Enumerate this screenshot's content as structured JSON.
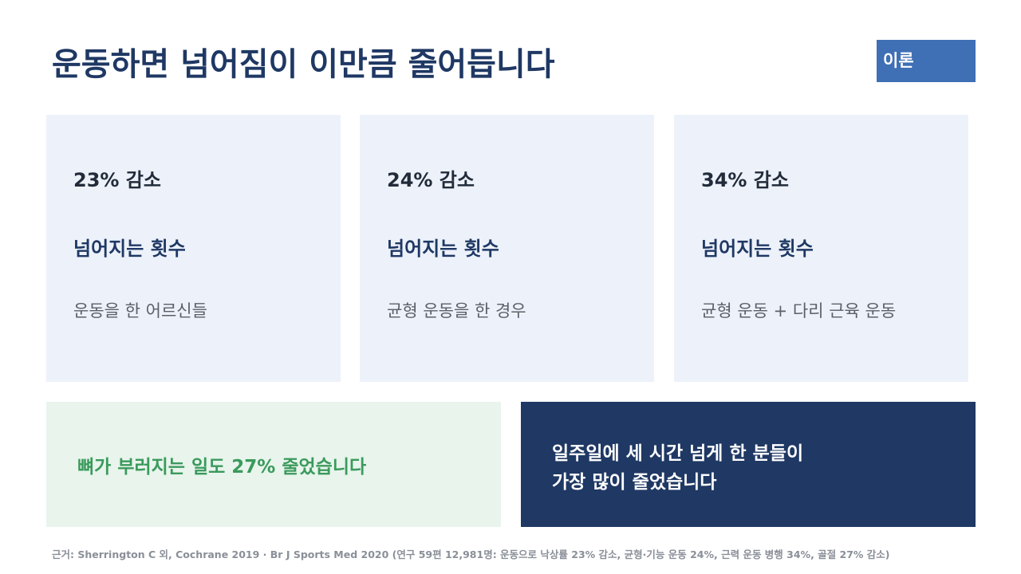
{
  "header": {
    "title": "운동하면 넘어짐이 이만큼 줄어듭니다",
    "badge": "이론"
  },
  "cards": [
    {
      "stat": "23% 감소",
      "label": "넘어지는 횟수",
      "desc": "운동을 한 어르신들"
    },
    {
      "stat": "24% 감소",
      "label": "넘어지는 횟수",
      "desc": "균형 운동을 한 경우"
    },
    {
      "stat": "34% 감소",
      "label": "넘어지는 횟수",
      "desc": "균형 운동 + 다리 근육 운동"
    }
  ],
  "highlight": "뼈가 부러지는 일도 27% 줄었습니다",
  "note": [
    "일주일에 세 시간 넘게 한 분들이",
    "가장 많이 줄었습니다"
  ],
  "source": "근거: Sherrington C 외, Cochrane 2019 · Br J Sports Med 2020 (연구 59편 12,981명: 운동으로 낙상률 23% 감소, 균형·기능 운동 24%, 근력 운동 병행 34%, 골절 27% 감소)"
}
